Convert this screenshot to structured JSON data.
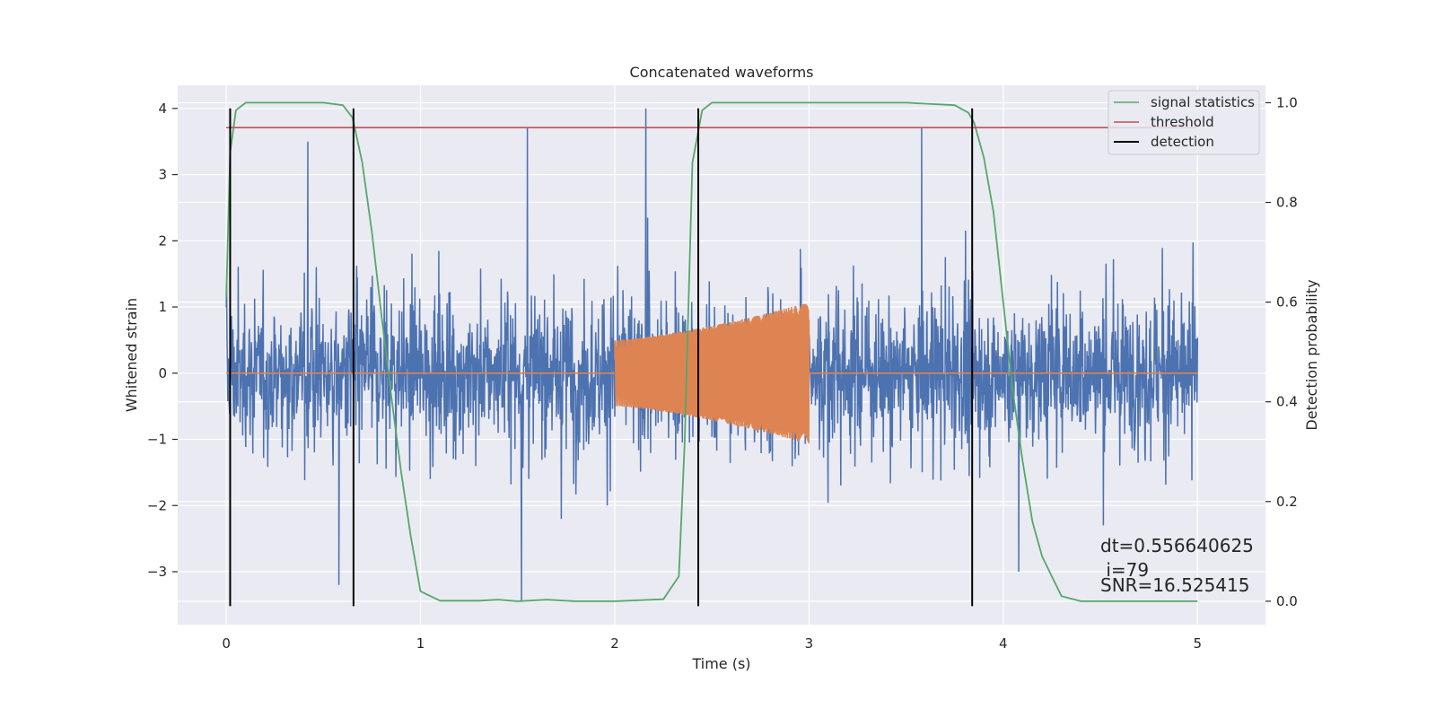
{
  "chart_data": {
    "type": "line",
    "title": "Concatenated waveforms",
    "xlabel": "Time (s)",
    "ylabel": "Whitened strain",
    "y2label": "Detection probability",
    "xlim": [
      -0.25,
      5.35
    ],
    "ylim": [
      -3.8,
      4.35
    ],
    "y2lim": [
      -0.047,
      1.035
    ],
    "xticks": [
      0,
      1,
      2,
      3,
      4,
      5
    ],
    "yticks": [
      -3,
      -2,
      -1,
      0,
      1,
      2,
      3,
      4
    ],
    "y2ticks": [
      0.0,
      0.2,
      0.4,
      0.6,
      0.8,
      1.0
    ],
    "y2ticklabels": [
      "0.0",
      "0.2",
      "0.4",
      "0.6",
      "0.8",
      "1.0"
    ],
    "ytick_minus": "−",
    "grid": true,
    "legend": "top-right",
    "noise": {
      "x_start": 0,
      "x_end": 5,
      "typical_range": [
        -2.2,
        2.3
      ],
      "extremes": [
        -3.45,
        4.0
      ],
      "spikes": [
        [
          0.58,
          -3.2
        ],
        [
          1.52,
          -3.45
        ],
        [
          2.16,
          4.0
        ],
        [
          3.58,
          3.7
        ],
        [
          0.42,
          3.5
        ],
        [
          1.55,
          3.7
        ],
        [
          4.08,
          -3.0
        ]
      ]
    },
    "template": {
      "x_start": 2.0,
      "x_end": 3.0,
      "start_amplitude": 0.5,
      "end_amplitude": 1.07,
      "baseline": 0
    },
    "signal_statistics": {
      "x": [
        0.0,
        0.02,
        0.05,
        0.1,
        0.2,
        0.5,
        0.6,
        0.65,
        0.7,
        0.75,
        0.8,
        0.85,
        0.9,
        0.95,
        1.0,
        1.1,
        1.3,
        1.4,
        1.5,
        1.65,
        1.8,
        2.0,
        2.25,
        2.33,
        2.36,
        2.4,
        2.45,
        2.5,
        2.6,
        3.0,
        3.5,
        3.75,
        3.82,
        3.85,
        3.9,
        3.95,
        4.0,
        4.05,
        4.1,
        4.15,
        4.2,
        4.25,
        4.3,
        4.4,
        4.6,
        5.0
      ],
      "y": [
        0.61,
        0.9,
        0.985,
        1.0,
        1.0,
        1.0,
        0.995,
        0.97,
        0.88,
        0.74,
        0.57,
        0.41,
        0.26,
        0.13,
        0.02,
        0.001,
        0.001,
        0.003,
        0.0,
        0.003,
        0.0,
        0.0,
        0.004,
        0.05,
        0.32,
        0.88,
        0.985,
        1.0,
        1.0,
        1.0,
        1.0,
        0.995,
        0.98,
        0.96,
        0.89,
        0.78,
        0.6,
        0.42,
        0.28,
        0.16,
        0.09,
        0.05,
        0.01,
        0.0,
        0.0,
        0.0
      ]
    },
    "threshold": {
      "value": 0.95,
      "x_start": 0,
      "x_end": 5
    },
    "detections": [
      0.02,
      0.655,
      2.43,
      3.84
    ],
    "detection_range": [
      -3.52,
      4.0
    ],
    "series": [
      {
        "name": "signal statistics",
        "color": "#55a868"
      },
      {
        "name": "threshold",
        "color": "#c44e52"
      },
      {
        "name": "detection",
        "color": "#000000"
      }
    ],
    "colors": {
      "noise": "#4c72b0",
      "template": "#dd8452",
      "background": "#eaeaf2",
      "grid": "#ffffff"
    },
    "annotation": {
      "lines": [
        "dt=0.556640625",
        " i=79",
        "SNR=16.525415"
      ]
    }
  }
}
